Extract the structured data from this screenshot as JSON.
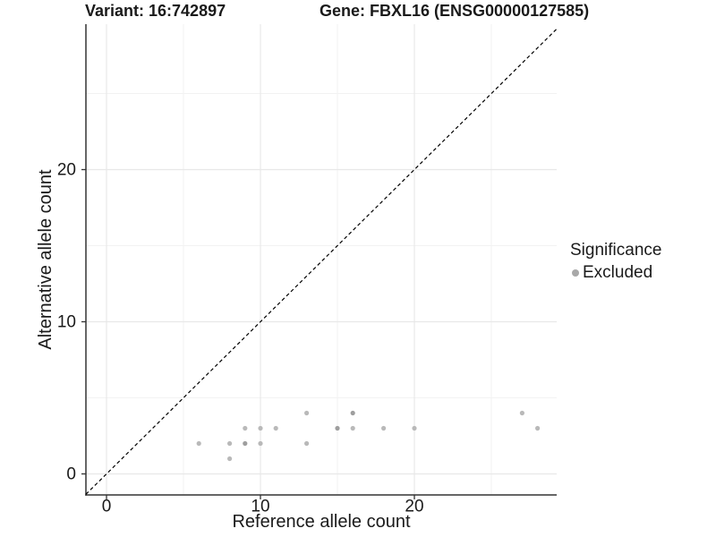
{
  "header": {
    "variant_title": "Variant: 16:742897",
    "gene_title": "Gene: FBXL16 (ENSG00000127585)"
  },
  "chart_data": {
    "type": "scatter",
    "xlabel": "Reference allele count",
    "ylabel": "Alternative allele count",
    "x_major_ticks": [
      0,
      10,
      20
    ],
    "y_major_ticks": [
      0,
      10,
      20
    ],
    "x_minor_ticks": [
      5,
      15,
      25
    ],
    "y_minor_ticks": [
      5,
      15,
      25
    ],
    "xlim": [
      -1.34,
      29.24
    ],
    "ylim": [
      -1.38,
      29.56
    ],
    "grid": true,
    "legend_position": "right",
    "identity_line": {
      "style": "dashed",
      "equation": "y = x",
      "color": "#000000"
    },
    "series": [
      {
        "name": "Excluded",
        "point_color": "#b9b9b9",
        "overlap_point_color": "#9e9e9e",
        "points": [
          {
            "x": 6,
            "y": 2
          },
          {
            "x": 8,
            "y": 1
          },
          {
            "x": 8,
            "y": 2
          },
          {
            "x": 9,
            "y": 2,
            "overlap": true
          },
          {
            "x": 9,
            "y": 3
          },
          {
            "x": 10,
            "y": 2
          },
          {
            "x": 10,
            "y": 3
          },
          {
            "x": 11,
            "y": 3
          },
          {
            "x": 13,
            "y": 2
          },
          {
            "x": 13,
            "y": 4
          },
          {
            "x": 15,
            "y": 3,
            "overlap": true
          },
          {
            "x": 16,
            "y": 3
          },
          {
            "x": 16,
            "y": 4,
            "overlap": true
          },
          {
            "x": 18,
            "y": 3
          },
          {
            "x": 20,
            "y": 3
          },
          {
            "x": 27,
            "y": 4
          },
          {
            "x": 28,
            "y": 3
          }
        ]
      }
    ],
    "legend": {
      "title": "Significance",
      "entries": [
        {
          "label": "Excluded",
          "color": "#a8a8a8"
        }
      ]
    },
    "colors": {
      "grid_major": "#e8e8e8",
      "grid_minor": "#f2f2f2",
      "axis_line": "#333333",
      "tick_text": "#1a1a1a",
      "background": "#ffffff"
    }
  }
}
